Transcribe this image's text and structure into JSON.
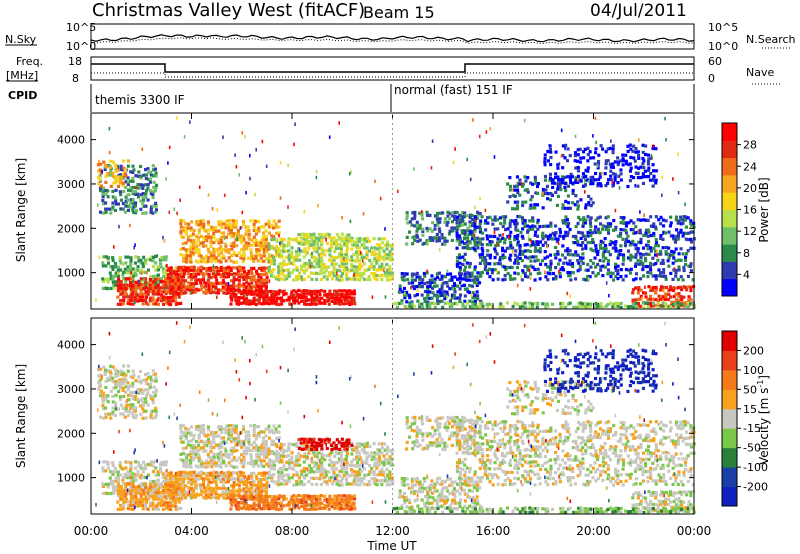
{
  "header": {
    "title": "Christmas Valley West (fitACF)",
    "beam": "Beam 15",
    "date": "04/Jul/2011"
  },
  "strips": {
    "noise_left": "N.Sky",
    "noise_right": "N.Search",
    "noise_ticks": [
      "10^5",
      "10^0"
    ],
    "freq_left_1": "Freq.",
    "freq_left_2": "[MHz]",
    "freq_ticks_left": [
      "18",
      "8"
    ],
    "freq_ticks_right": [
      "60",
      "0"
    ],
    "nave_label": "Nave",
    "cpid_label": "CPID",
    "cpid_modes": [
      "themis 3300 IF",
      "normal (fast) 151 IF"
    ]
  },
  "chart_data": [
    {
      "type": "heatmap",
      "title": "",
      "quantity": "Power",
      "ylabel": "Slant Range [km]",
      "xlabel": "",
      "xlim": [
        "00:00",
        "24:00"
      ],
      "ylim": [
        180,
        4600
      ],
      "yticks": [
        "1000",
        "2000",
        "3000",
        "4000"
      ],
      "colorbar": {
        "label": "Power [dB]",
        "ticks": [
          "28",
          "24",
          "20",
          "16",
          "12",
          "8",
          "4"
        ],
        "colors": [
          "#0000ff",
          "#2e3cb0",
          "#2a8a4a",
          "#6fbf6a",
          "#b8e04a",
          "#f5d41a",
          "#f6a623",
          "#f06b18",
          "#e02a14",
          "#ff0000"
        ]
      }
    },
    {
      "type": "heatmap",
      "title": "",
      "quantity": "Velocity",
      "ylabel": "Slant Range [km]",
      "xlabel": "Time UT",
      "xlim": [
        "00:00",
        "24:00"
      ],
      "ylim": [
        180,
        4600
      ],
      "yticks": [
        "1000",
        "2000",
        "3000",
        "4000"
      ],
      "xticks": [
        "00:00",
        "04:00",
        "08:00",
        "12:00",
        "16:00",
        "20:00",
        "00:00"
      ],
      "colorbar": {
        "label": "Velocity [m s",
        "label_sup": "-1",
        "label_end": "]",
        "ticks": [
          "200",
          "100",
          "50",
          "15",
          "-15",
          "-50",
          "-100",
          "-200"
        ],
        "colors": [
          "#1020c0",
          "#1c3ea8",
          "#2a7f3a",
          "#7ac74a",
          "#c8c8c0",
          "#f7a21e",
          "#f47a1a",
          "#e8401a",
          "#e00000"
        ]
      }
    }
  ]
}
